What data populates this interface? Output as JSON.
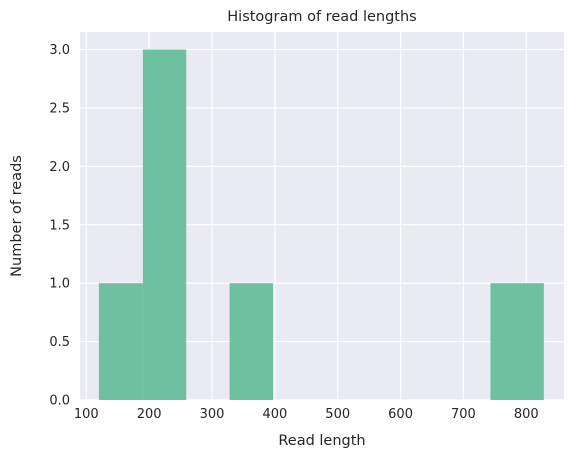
{
  "chart_data": {
    "type": "bar",
    "title": "Histogram of read lengths",
    "xlabel": "Read length",
    "ylabel": "Number of reads",
    "xlim": [
      90,
      860
    ],
    "ylim": [
      0,
      3.15
    ],
    "xticks": [
      100,
      200,
      300,
      400,
      500,
      600,
      700,
      800
    ],
    "yticks": [
      "0.0",
      "0.5",
      "1.0",
      "1.5",
      "2.0",
      "2.5",
      "3.0"
    ],
    "bins": [
      {
        "start": 120,
        "end": 190,
        "count": 1
      },
      {
        "start": 190,
        "end": 259,
        "count": 3
      },
      {
        "start": 259,
        "end": 328,
        "count": 0
      },
      {
        "start": 328,
        "end": 397,
        "count": 1
      },
      {
        "start": 397,
        "end": 466,
        "count": 0
      },
      {
        "start": 466,
        "end": 536,
        "count": 0
      },
      {
        "start": 536,
        "end": 605,
        "count": 0
      },
      {
        "start": 605,
        "end": 674,
        "count": 0
      },
      {
        "start": 674,
        "end": 743,
        "count": 0
      },
      {
        "start": 743,
        "end": 828,
        "count": 1
      }
    ],
    "bar_color": "#66bf9b",
    "background": "#eaeaf2",
    "grid": true
  }
}
